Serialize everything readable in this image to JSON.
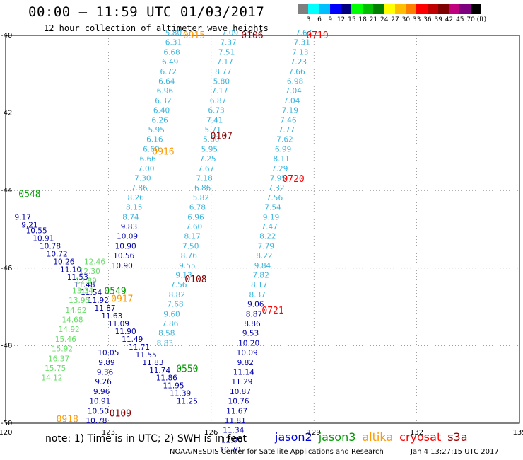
{
  "title": "00:00 – 11:59 UTC 01/03/2017",
  "subtitle": "12 hour collection of altimeter wave heights",
  "note": "note: 1) Time is in UTC; 2) SWH is in feet",
  "credit": "NOAA/NESDIS Center for Satellite Applications and Research",
  "timestamp": "Jan  4 13:27:15 UTC 2017",
  "color_scale": {
    "colors": [
      "#7f7f7f",
      "#00ffff",
      "#00bfff",
      "#0000ff",
      "#00007f",
      "#00ff00",
      "#00bf00",
      "#007f00",
      "#ffff00",
      "#ffbf00",
      "#ff7f00",
      "#ff0000",
      "#bf0000",
      "#7f0000",
      "#bf007f",
      "#7f007f",
      "#000000"
    ],
    "labels": [
      "",
      "3",
      "6",
      "9",
      "12",
      "15",
      "18",
      "21",
      "24",
      "27",
      "30",
      "33",
      "36",
      "39",
      "42",
      "45",
      "70",
      "(ft)"
    ]
  },
  "legend": [
    {
      "name": "jason2",
      "color": "#0000dd"
    },
    {
      "name": "jason3",
      "color": "#009900"
    },
    {
      "name": "altika",
      "color": "#ff9900"
    },
    {
      "name": "cryosat",
      "color": "#ff0000"
    },
    {
      "name": "s3a",
      "color": "#990000"
    }
  ],
  "axes": {
    "lon": {
      "ticks": [
        120,
        123,
        126,
        129,
        132,
        135
      ]
    },
    "lat": {
      "ticks": [
        -40,
        -42,
        -44,
        -46,
        -48,
        -50
      ]
    }
  },
  "chart_data": {
    "type": "scatter",
    "xlabel": "",
    "ylabel": "",
    "xlim": [
      120,
      135
    ],
    "ylim": [
      -50,
      -40
    ],
    "grid": true,
    "tracks": [
      {
        "color": "#3ab4dc",
        "points": [
          {
            "lon": 124.9,
            "lat": -40.0,
            "v": "5.80"
          },
          {
            "lon": 124.9,
            "lat": -40.25,
            "v": "6.31"
          },
          {
            "lon": 124.85,
            "lat": -40.5,
            "v": "6.68"
          },
          {
            "lon": 124.8,
            "lat": -40.75,
            "v": "6.49"
          },
          {
            "lon": 124.75,
            "lat": -41.0,
            "v": "6.72"
          },
          {
            "lon": 124.7,
            "lat": -41.25,
            "v": "6.64"
          },
          {
            "lon": 124.65,
            "lat": -41.5,
            "v": "6.96"
          },
          {
            "lon": 124.6,
            "lat": -41.75,
            "v": "6.32"
          },
          {
            "lon": 124.55,
            "lat": -42.0,
            "v": "6.40"
          },
          {
            "lon": 124.5,
            "lat": -42.25,
            "v": "6.26"
          },
          {
            "lon": 124.4,
            "lat": -42.5,
            "v": "5.95"
          },
          {
            "lon": 124.35,
            "lat": -42.75,
            "v": "6.16"
          },
          {
            "lon": 124.25,
            "lat": -43.0,
            "v": "6.60"
          },
          {
            "lon": 124.15,
            "lat": -43.25,
            "v": "6.66"
          },
          {
            "lon": 124.1,
            "lat": -43.5,
            "v": "7.00"
          },
          {
            "lon": 124.0,
            "lat": -43.75,
            "v": "7.30"
          },
          {
            "lon": 123.9,
            "lat": -44.0,
            "v": "7.86"
          },
          {
            "lon": 123.8,
            "lat": -44.25,
            "v": "8.26"
          },
          {
            "lon": 123.75,
            "lat": -44.5,
            "v": "8.15"
          },
          {
            "lon": 123.65,
            "lat": -44.75,
            "v": "8.74"
          }
        ]
      },
      {
        "color": "#3ab4dc",
        "points": [
          {
            "lon": 126.55,
            "lat": -40.0,
            "v": "7.09"
          },
          {
            "lon": 126.5,
            "lat": -40.25,
            "v": "7.37"
          },
          {
            "lon": 126.45,
            "lat": -40.5,
            "v": "7.51"
          },
          {
            "lon": 126.4,
            "lat": -40.75,
            "v": "7.17"
          },
          {
            "lon": 126.35,
            "lat": -41.0,
            "v": "8.77"
          },
          {
            "lon": 126.3,
            "lat": -41.25,
            "v": "5.80"
          },
          {
            "lon": 126.25,
            "lat": -41.5,
            "v": "7.17"
          },
          {
            "lon": 126.2,
            "lat": -41.75,
            "v": "6.87"
          },
          {
            "lon": 126.15,
            "lat": -42.0,
            "v": "6.73"
          },
          {
            "lon": 126.1,
            "lat": -42.25,
            "v": "7.41"
          },
          {
            "lon": 126.05,
            "lat": -42.5,
            "v": "5.71"
          },
          {
            "lon": 126.0,
            "lat": -42.75,
            "v": "5.80"
          },
          {
            "lon": 125.95,
            "lat": -43.0,
            "v": "5.95"
          },
          {
            "lon": 125.9,
            "lat": -43.25,
            "v": "7.25"
          },
          {
            "lon": 125.85,
            "lat": -43.5,
            "v": "7.67"
          },
          {
            "lon": 125.8,
            "lat": -43.75,
            "v": "7.18"
          },
          {
            "lon": 125.75,
            "lat": -44.0,
            "v": "6.86"
          },
          {
            "lon": 125.7,
            "lat": -44.25,
            "v": "5.82"
          },
          {
            "lon": 125.6,
            "lat": -44.5,
            "v": "6.78"
          },
          {
            "lon": 125.55,
            "lat": -44.75,
            "v": "6.96"
          },
          {
            "lon": 125.5,
            "lat": -45.0,
            "v": "7.60"
          },
          {
            "lon": 125.45,
            "lat": -45.25,
            "v": "8.17"
          },
          {
            "lon": 125.4,
            "lat": -45.5,
            "v": "7.50"
          },
          {
            "lon": 125.35,
            "lat": -45.75,
            "v": "8.76"
          },
          {
            "lon": 125.3,
            "lat": -46.0,
            "v": "9.55"
          },
          {
            "lon": 125.2,
            "lat": -46.25,
            "v": "9.13"
          },
          {
            "lon": 125.05,
            "lat": -46.5,
            "v": "7.56"
          },
          {
            "lon": 125.0,
            "lat": -46.75,
            "v": "8.82"
          },
          {
            "lon": 124.95,
            "lat": -47.0,
            "v": "7.68"
          },
          {
            "lon": 124.85,
            "lat": -47.25,
            "v": "9.60"
          },
          {
            "lon": 124.8,
            "lat": -47.5,
            "v": "7.86"
          },
          {
            "lon": 124.7,
            "lat": -47.75,
            "v": "8.58"
          },
          {
            "lon": 124.65,
            "lat": -48.0,
            "v": "8.83"
          }
        ]
      },
      {
        "color": "#3ab4dc",
        "points": [
          {
            "lon": 128.7,
            "lat": -40.0,
            "v": "7.67"
          },
          {
            "lon": 128.65,
            "lat": -40.25,
            "v": "7.31"
          },
          {
            "lon": 128.6,
            "lat": -40.5,
            "v": "7.13"
          },
          {
            "lon": 128.55,
            "lat": -40.75,
            "v": "7.23"
          },
          {
            "lon": 128.5,
            "lat": -41.0,
            "v": "7.66"
          },
          {
            "lon": 128.45,
            "lat": -41.25,
            "v": "6.98"
          },
          {
            "lon": 128.4,
            "lat": -41.5,
            "v": "7.04"
          },
          {
            "lon": 128.35,
            "lat": -41.75,
            "v": "7.04"
          },
          {
            "lon": 128.3,
            "lat": -42.0,
            "v": "7.19"
          },
          {
            "lon": 128.25,
            "lat": -42.25,
            "v": "7.46"
          },
          {
            "lon": 128.2,
            "lat": -42.5,
            "v": "7.77"
          },
          {
            "lon": 128.15,
            "lat": -42.75,
            "v": "7.62"
          },
          {
            "lon": 128.1,
            "lat": -43.0,
            "v": "6.99"
          },
          {
            "lon": 128.05,
            "lat": -43.25,
            "v": "8.11"
          },
          {
            "lon": 128.0,
            "lat": -43.5,
            "v": "7.29"
          },
          {
            "lon": 127.95,
            "lat": -43.75,
            "v": "7.95"
          },
          {
            "lon": 127.9,
            "lat": -44.0,
            "v": "7.32"
          },
          {
            "lon": 127.85,
            "lat": -44.25,
            "v": "7.56"
          },
          {
            "lon": 127.8,
            "lat": -44.5,
            "v": "7.54"
          },
          {
            "lon": 127.75,
            "lat": -44.75,
            "v": "9.19"
          },
          {
            "lon": 127.7,
            "lat": -45.0,
            "v": "7.47"
          },
          {
            "lon": 127.65,
            "lat": -45.25,
            "v": "8.22"
          },
          {
            "lon": 127.6,
            "lat": -45.5,
            "v": "7.79"
          },
          {
            "lon": 127.55,
            "lat": -45.75,
            "v": "8.22"
          },
          {
            "lon": 127.5,
            "lat": -46.0,
            "v": "9.84"
          },
          {
            "lon": 127.45,
            "lat": -46.25,
            "v": "7.82"
          },
          {
            "lon": 127.4,
            "lat": -46.5,
            "v": "8.17"
          },
          {
            "lon": 127.35,
            "lat": -46.75,
            "v": "8.37"
          }
        ]
      },
      {
        "color": "#0000aa",
        "points": [
          {
            "lon": 127.3,
            "lat": -47.0,
            "v": "9.06"
          },
          {
            "lon": 127.25,
            "lat": -47.25,
            "v": "8.87"
          },
          {
            "lon": 127.2,
            "lat": -47.5,
            "v": "8.86"
          },
          {
            "lon": 127.15,
            "lat": -47.75,
            "v": "9.53"
          },
          {
            "lon": 127.1,
            "lat": -48.0,
            "v": "10.20"
          },
          {
            "lon": 127.05,
            "lat": -48.25,
            "v": "10.09"
          },
          {
            "lon": 127.0,
            "lat": -48.5,
            "v": "9.82"
          },
          {
            "lon": 126.95,
            "lat": -48.75,
            "v": "11.14"
          },
          {
            "lon": 126.9,
            "lat": -49.0,
            "v": "11.29"
          },
          {
            "lon": 126.85,
            "lat": -49.25,
            "v": "10.87"
          },
          {
            "lon": 126.8,
            "lat": -49.5,
            "v": "10.76"
          },
          {
            "lon": 126.75,
            "lat": -49.75,
            "v": "11.67"
          },
          {
            "lon": 126.7,
            "lat": -50.0,
            "v": "11.81"
          },
          {
            "lon": 126.65,
            "lat": -50.25,
            "v": "11.34"
          },
          {
            "lon": 126.6,
            "lat": -50.5,
            "v": "12.00"
          },
          {
            "lon": 126.55,
            "lat": -50.75,
            "v": "10.70"
          }
        ]
      },
      {
        "color": "#0000aa",
        "points": [
          {
            "lon": 123.6,
            "lat": -45.0,
            "v": "9.83"
          },
          {
            "lon": 123.55,
            "lat": -45.25,
            "v": "10.09"
          },
          {
            "lon": 123.5,
            "lat": -45.5,
            "v": "10.90"
          },
          {
            "lon": 123.45,
            "lat": -45.75,
            "v": "10.56"
          },
          {
            "lon": 123.4,
            "lat": -46.0,
            "v": "10.90"
          },
          {
            "lon": 123.0,
            "lat": -48.25,
            "v": "10.05"
          },
          {
            "lon": 122.95,
            "lat": -48.5,
            "v": "9.89"
          },
          {
            "lon": 122.9,
            "lat": -48.75,
            "v": "9.36"
          },
          {
            "lon": 122.85,
            "lat": -49.0,
            "v": "9.26"
          },
          {
            "lon": 122.8,
            "lat": -49.25,
            "v": "9.96"
          },
          {
            "lon": 122.75,
            "lat": -49.5,
            "v": "10.91"
          },
          {
            "lon": 122.7,
            "lat": -49.75,
            "v": "10.50"
          },
          {
            "lon": 122.65,
            "lat": -50.0,
            "v": "10.78"
          }
        ]
      },
      {
        "color": "#0000aa",
        "points": [
          {
            "lon": 120.5,
            "lat": -44.75,
            "v": "9.17"
          },
          {
            "lon": 120.7,
            "lat": -44.95,
            "v": "9.21"
          },
          {
            "lon": 120.9,
            "lat": -45.1,
            "v": "10.55"
          },
          {
            "lon": 121.1,
            "lat": -45.3,
            "v": "10.91"
          },
          {
            "lon": 121.3,
            "lat": -45.5,
            "v": "10.78"
          },
          {
            "lon": 121.5,
            "lat": -45.7,
            "v": "10.72"
          },
          {
            "lon": 121.7,
            "lat": -45.9,
            "v": "10.26"
          },
          {
            "lon": 121.9,
            "lat": -46.1,
            "v": "11.10"
          },
          {
            "lon": 122.1,
            "lat": -46.3,
            "v": "11.53"
          },
          {
            "lon": 122.3,
            "lat": -46.5,
            "v": "11.48"
          },
          {
            "lon": 122.5,
            "lat": -46.7,
            "v": "11.54"
          },
          {
            "lon": 122.7,
            "lat": -46.9,
            "v": "11.92"
          },
          {
            "lon": 122.9,
            "lat": -47.1,
            "v": "11.87"
          },
          {
            "lon": 123.1,
            "lat": -47.3,
            "v": "11.63"
          },
          {
            "lon": 123.3,
            "lat": -47.5,
            "v": "11.09"
          },
          {
            "lon": 123.5,
            "lat": -47.7,
            "v": "11.90"
          },
          {
            "lon": 123.7,
            "lat": -47.9,
            "v": "11.49"
          },
          {
            "lon": 123.9,
            "lat": -48.1,
            "v": "11.71"
          },
          {
            "lon": 124.1,
            "lat": -48.3,
            "v": "11.55"
          },
          {
            "lon": 124.3,
            "lat": -48.5,
            "v": "11.83"
          },
          {
            "lon": 124.5,
            "lat": -48.7,
            "v": "11.74"
          },
          {
            "lon": 124.7,
            "lat": -48.9,
            "v": "11.86"
          },
          {
            "lon": 124.9,
            "lat": -49.1,
            "v": "11.95"
          },
          {
            "lon": 125.1,
            "lat": -49.3,
            "v": "11.39"
          },
          {
            "lon": 125.3,
            "lat": -49.5,
            "v": "11.25"
          }
        ]
      },
      {
        "color": "#66dd66",
        "points": [
          {
            "lon": 122.6,
            "lat": -45.9,
            "v": "12.46"
          },
          {
            "lon": 122.45,
            "lat": -46.15,
            "v": "12.30"
          },
          {
            "lon": 122.35,
            "lat": -46.4,
            "v": "12.89"
          },
          {
            "lon": 122.25,
            "lat": -46.65,
            "v": "13.34"
          },
          {
            "lon": 122.15,
            "lat": -46.9,
            "v": "13.95"
          },
          {
            "lon": 122.05,
            "lat": -47.15,
            "v": "14.62"
          },
          {
            "lon": 121.95,
            "lat": -47.4,
            "v": "14.68"
          },
          {
            "lon": 121.85,
            "lat": -47.65,
            "v": "14.92"
          },
          {
            "lon": 121.75,
            "lat": -47.9,
            "v": "15.46"
          },
          {
            "lon": 121.65,
            "lat": -48.15,
            "v": "15.92"
          },
          {
            "lon": 121.55,
            "lat": -48.4,
            "v": "16.37"
          },
          {
            "lon": 121.45,
            "lat": -48.65,
            "v": "15.75"
          },
          {
            "lon": 121.35,
            "lat": -48.9,
            "v": "14.12"
          }
        ]
      }
    ],
    "time_labels": [
      {
        "lon": 125.5,
        "lat": -40.0,
        "t": "0915",
        "color": "#ff9900"
      },
      {
        "lon": 127.2,
        "lat": -40.0,
        "t": "0106",
        "color": "#880000"
      },
      {
        "lon": 129.1,
        "lat": -40.0,
        "t": "0719",
        "color": "#ff0000"
      },
      {
        "lon": 126.3,
        "lat": -42.6,
        "t": "0107",
        "color": "#880000"
      },
      {
        "lon": 124.6,
        "lat": -43.0,
        "t": "0916",
        "color": "#ff9900"
      },
      {
        "lon": 128.4,
        "lat": -43.7,
        "t": "0720",
        "color": "#ff0000"
      },
      {
        "lon": 120.7,
        "lat": -44.1,
        "t": "0548",
        "color": "#009900"
      },
      {
        "lon": 125.55,
        "lat": -46.3,
        "t": "0108",
        "color": "#880000"
      },
      {
        "lon": 123.2,
        "lat": -46.6,
        "t": "0549",
        "color": "#009900"
      },
      {
        "lon": 123.4,
        "lat": -46.8,
        "t": "0917",
        "color": "#ff9900"
      },
      {
        "lon": 127.8,
        "lat": -47.1,
        "t": "0721",
        "color": "#ff0000"
      },
      {
        "lon": 125.3,
        "lat": -48.6,
        "t": "0550",
        "color": "#009900"
      },
      {
        "lon": 123.35,
        "lat": -49.75,
        "t": "0109",
        "color": "#880000"
      },
      {
        "lon": 121.8,
        "lat": -49.9,
        "t": "0918",
        "color": "#ff9900"
      }
    ]
  }
}
